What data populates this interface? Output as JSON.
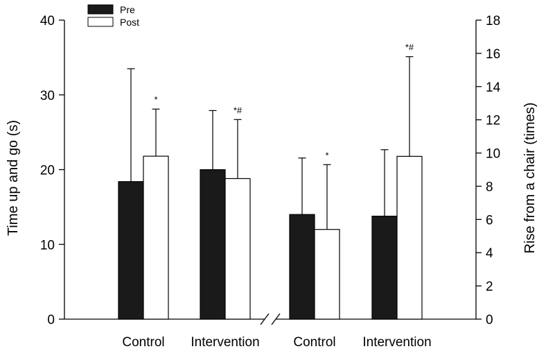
{
  "chart_data": {
    "type": "bar",
    "legend": {
      "placement": "top-left",
      "entries": [
        {
          "label": "Pre",
          "color": "#1a1a1a"
        },
        {
          "label": "Post",
          "color": "#ffffff"
        }
      ]
    },
    "left_axis": {
      "ylabel": "Time up and go (s)",
      "ylim": [
        0,
        40
      ],
      "ticks": [
        0,
        10,
        20,
        30,
        40
      ],
      "tick_labels": [
        "0",
        "10",
        "20",
        "30",
        "40"
      ]
    },
    "right_axis": {
      "ylabel": "Rise from a chair (times)",
      "ylim": [
        0,
        18
      ],
      "ticks": [
        0,
        2,
        4,
        6,
        8,
        10,
        12,
        14,
        16,
        18
      ],
      "tick_labels": [
        "0",
        "2",
        "4",
        "6",
        "8",
        "10",
        "12",
        "14",
        "16",
        "18"
      ]
    },
    "axis_break": true,
    "groups": [
      {
        "category": "Control",
        "axis": "left",
        "bars": [
          {
            "series": "Pre",
            "value": 18.4,
            "error": 15.1,
            "sig": ""
          },
          {
            "series": "Post",
            "value": 21.8,
            "error": 6.3,
            "sig": "*"
          }
        ]
      },
      {
        "category": "Intervention",
        "axis": "left",
        "bars": [
          {
            "series": "Pre",
            "value": 20.0,
            "error": 7.9,
            "sig": ""
          },
          {
            "series": "Post",
            "value": 18.8,
            "error": 7.9,
            "sig": "*#"
          }
        ]
      },
      {
        "category": "Control",
        "axis": "right",
        "bars": [
          {
            "series": "Pre",
            "value": 6.3,
            "error": 3.4,
            "sig": ""
          },
          {
            "series": "Post",
            "value": 5.4,
            "error": 3.9,
            "sig": "*"
          }
        ]
      },
      {
        "category": "Intervention",
        "axis": "right",
        "bars": [
          {
            "series": "Pre",
            "value": 6.2,
            "error": 4.0,
            "sig": ""
          },
          {
            "series": "Post",
            "value": 9.8,
            "error": 6.0,
            "sig": "*#"
          }
        ]
      }
    ]
  }
}
